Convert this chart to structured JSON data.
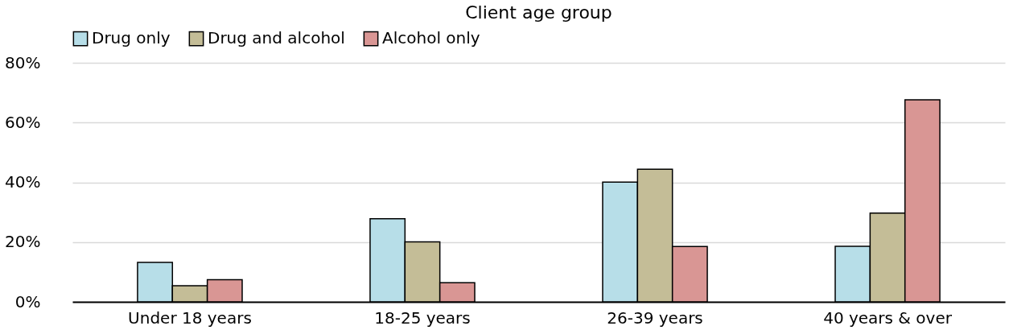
{
  "chart_data": {
    "type": "bar",
    "title": "Client age group",
    "categories": [
      "Under 18 years",
      "18-25 years",
      "26-39 years",
      "40 years & over"
    ],
    "series": [
      {
        "name": "Drug only",
        "color": "#b7dee8",
        "values": [
          13.2,
          27.8,
          40.1,
          18.6
        ]
      },
      {
        "name": "Drug and alcohol",
        "color": "#c4bd97",
        "values": [
          5.4,
          20.1,
          44.4,
          29.7
        ]
      },
      {
        "name": "Alcohol only",
        "color": "#d99694",
        "values": [
          7.4,
          6.4,
          18.5,
          67.6
        ]
      }
    ],
    "ylim": [
      0,
      80
    ],
    "yticks": [
      {
        "value": 0,
        "label": "0%"
      },
      {
        "value": 20,
        "label": "20%"
      },
      {
        "value": 40,
        "label": "40%"
      },
      {
        "value": 60,
        "label": "60%"
      },
      {
        "value": 80,
        "label": "80%"
      }
    ],
    "grid": "y",
    "legend": "top"
  }
}
